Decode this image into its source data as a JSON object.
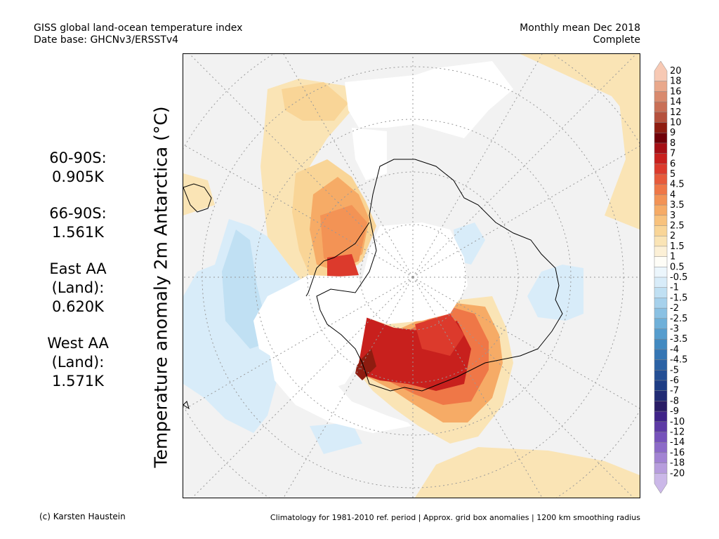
{
  "header": {
    "title": "GISS global land-ocean temperature index",
    "database": "Date base: GHCNv3/ERSSTv4",
    "period": "Monthly mean Dec 2018",
    "status": "Complete"
  },
  "map": {
    "axis_label": "Temperature anomaly 2m Antarctica (°C)",
    "projection": "south-polar-stereographic",
    "graticule": "dotted",
    "land_outline_color": "#000000",
    "missing_data_color": "#ffffff",
    "background_color": "#f2f2f2"
  },
  "stats": [
    {
      "lines": [
        "60-90S:",
        "0.905K"
      ]
    },
    {
      "lines": [
        "66-90S:",
        "1.561K"
      ]
    },
    {
      "lines": [
        "East AA",
        "(Land):",
        "0.620K"
      ]
    },
    {
      "lines": [
        "West AA",
        "(Land):",
        "1.571K"
      ]
    }
  ],
  "colorbar": {
    "labels": [
      "20",
      "18",
      "16",
      "14",
      "12",
      "10",
      "9",
      "8",
      "7",
      "6",
      "5",
      "4.5",
      "4",
      "3.5",
      "3",
      "2.5",
      "2",
      "1.5",
      "1",
      "0.5",
      "-0.5",
      "-1",
      "-1.5",
      "-2",
      "-2.5",
      "-3",
      "-3.5",
      "-4",
      "-4.5",
      "-5",
      "-6",
      "-7",
      "-8",
      "-9",
      "-10",
      "-12",
      "-14",
      "-16",
      "-18",
      "-20"
    ],
    "colors": [
      "#f7c9b4",
      "#e9a88b",
      "#d98a6e",
      "#c96f56",
      "#b5513d",
      "#8e1c10",
      "#700008",
      "#a50f15",
      "#c8201d",
      "#dc3a2c",
      "#e75a3b",
      "#ef7747",
      "#f39355",
      "#f6ab66",
      "#f8c27d",
      "#f9d597",
      "#fae4b5",
      "#fcf0d6",
      "#fefdf7",
      "#ecf6fc",
      "#d8ecf9",
      "#c0e0f3",
      "#a6d1ec",
      "#8ac1e3",
      "#6fb0d9",
      "#569dce",
      "#428ac1",
      "#3576b4",
      "#2b62a5",
      "#244f95",
      "#1e3d85",
      "#212b74",
      "#2a1d66",
      "#3f2388",
      "#5d3aa5",
      "#7652bb",
      "#8c6ac8",
      "#a283d3",
      "#b79ddd",
      "#cbb8e8"
    ]
  },
  "footer": {
    "credit": "(c) Karsten Haustein",
    "note": "Climatology for 1981-2010 ref. period | Approx. grid box anomalies | 1200 km smoothing radius"
  }
}
